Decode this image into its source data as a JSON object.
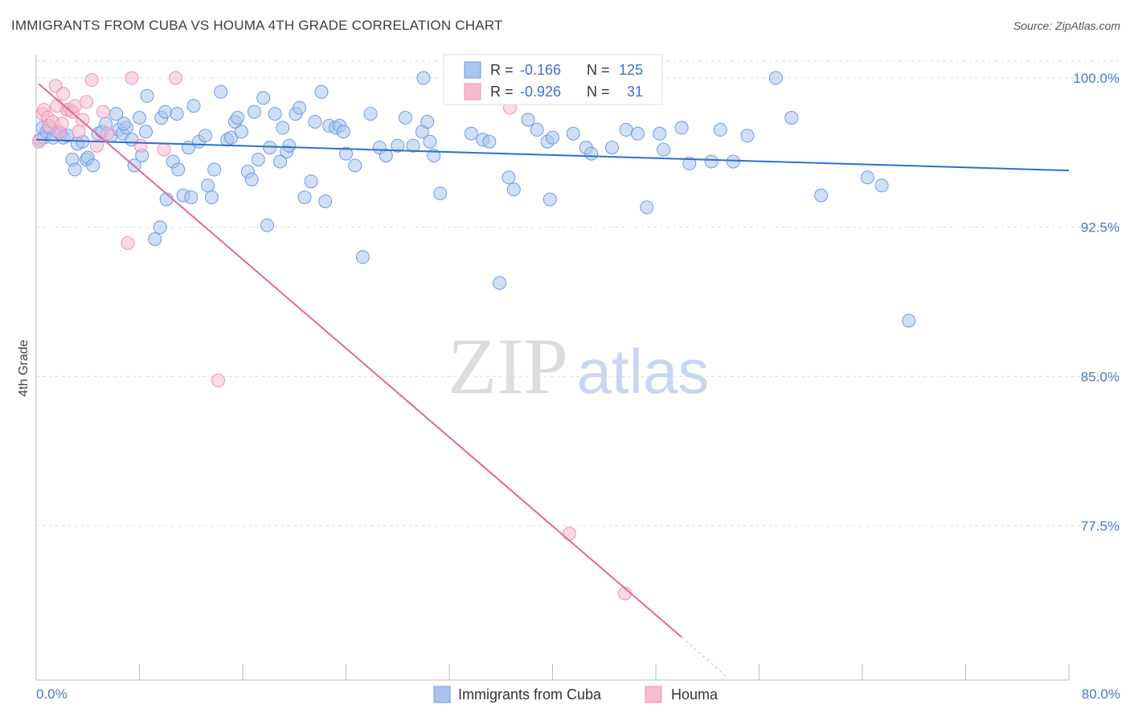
{
  "title": "IMMIGRANTS FROM CUBA VS HOUMA 4TH GRADE CORRELATION CHART",
  "source": "Source: ZipAtlas.com",
  "watermark": {
    "zip": "ZIP",
    "atlas": "atlas"
  },
  "legend_box": {
    "rows": [
      {
        "r_label": "R =",
        "r_value": "-0.166",
        "n_label": "N =",
        "n_value": "125"
      },
      {
        "r_label": "R =",
        "r_value": "-0.926",
        "n_label": "N =",
        "n_value": "31"
      }
    ]
  },
  "bottom_legend": [
    "Immigrants from Cuba",
    "Houma"
  ],
  "colors": {
    "blue_fill": "#a9c4ee",
    "blue_stroke": "#6e9be0",
    "blue_line": "#2e6fd0",
    "pink_fill": "#f6bcd0",
    "pink_stroke": "#ee93b2",
    "pink_line": "#e0699a",
    "tick_text": "#4a78c8",
    "grid": "#dddddd"
  },
  "chart_data": {
    "type": "scatter",
    "xlabel": "",
    "ylabel": "4th Grade",
    "xlim": [
      0,
      80
    ],
    "ylim": [
      71,
      101
    ],
    "x_tick_labels": [
      "0.0%",
      "80.0%"
    ],
    "y_ticks": [
      77.5,
      85.0,
      92.5,
      100.0
    ],
    "y_tick_labels": [
      "77.5%",
      "85.0%",
      "92.5%",
      "100.0%"
    ],
    "grid": "horizontal dashed",
    "series": [
      {
        "name": "Immigrants from Cuba",
        "trend": {
          "x": [
            0,
            80
          ],
          "y": [
            96.9,
            95.35
          ]
        },
        "points": [
          [
            0.3,
            96.9
          ],
          [
            0.5,
            97.5
          ],
          [
            0.6,
            97.0
          ],
          [
            0.8,
            97.3
          ],
          [
            1.0,
            97.5
          ],
          [
            1.3,
            97.0
          ],
          [
            1.6,
            97.3
          ],
          [
            1.9,
            97.2
          ],
          [
            2.1,
            97.0
          ],
          [
            2.4,
            97.1
          ],
          [
            2.8,
            95.9
          ],
          [
            3.0,
            95.4
          ],
          [
            3.2,
            96.7
          ],
          [
            3.6,
            96.8
          ],
          [
            3.9,
            95.9
          ],
          [
            4.0,
            96.0
          ],
          [
            4.4,
            95.6
          ],
          [
            4.8,
            97.2
          ],
          [
            5.1,
            97.3
          ],
          [
            5.4,
            97.7
          ],
          [
            5.8,
            97.1
          ],
          [
            6.2,
            98.2
          ],
          [
            6.4,
            97.4
          ],
          [
            6.7,
            97.2
          ],
          [
            7.0,
            97.5
          ],
          [
            7.4,
            96.9
          ],
          [
            7.6,
            95.6
          ],
          [
            8.0,
            98.0
          ],
          [
            8.2,
            96.1
          ],
          [
            8.5,
            97.3
          ],
          [
            8.6,
            99.1
          ],
          [
            9.2,
            91.9
          ],
          [
            9.6,
            92.5
          ],
          [
            9.7,
            98.0
          ],
          [
            10.0,
            98.3
          ],
          [
            10.1,
            93.9
          ],
          [
            10.6,
            95.8
          ],
          [
            10.9,
            98.2
          ],
          [
            11.0,
            95.4
          ],
          [
            11.4,
            94.1
          ],
          [
            11.8,
            96.5
          ],
          [
            12.0,
            94.0
          ],
          [
            12.2,
            98.6
          ],
          [
            12.6,
            96.8
          ],
          [
            13.1,
            97.1
          ],
          [
            13.3,
            94.6
          ],
          [
            13.6,
            94.0
          ],
          [
            13.8,
            95.4
          ],
          [
            14.3,
            99.3
          ],
          [
            14.8,
            96.9
          ],
          [
            15.1,
            97.0
          ],
          [
            15.4,
            97.8
          ],
          [
            15.6,
            98.0
          ],
          [
            15.9,
            97.3
          ],
          [
            16.4,
            95.3
          ],
          [
            16.7,
            94.9
          ],
          [
            16.9,
            98.3
          ],
          [
            17.2,
            95.9
          ],
          [
            17.6,
            99.0
          ],
          [
            17.9,
            92.6
          ],
          [
            18.1,
            96.5
          ],
          [
            18.5,
            98.2
          ],
          [
            18.9,
            95.8
          ],
          [
            19.1,
            97.5
          ],
          [
            19.4,
            96.3
          ],
          [
            19.6,
            96.6
          ],
          [
            20.1,
            98.2
          ],
          [
            20.4,
            98.5
          ],
          [
            20.8,
            94.0
          ],
          [
            21.3,
            94.8
          ],
          [
            21.6,
            97.8
          ],
          [
            22.1,
            99.3
          ],
          [
            22.4,
            93.8
          ],
          [
            22.7,
            97.6
          ],
          [
            23.2,
            97.5
          ],
          [
            23.5,
            97.6
          ],
          [
            23.8,
            97.3
          ],
          [
            24.0,
            96.2
          ],
          [
            24.7,
            95.6
          ],
          [
            25.3,
            91.0
          ],
          [
            25.9,
            98.2
          ],
          [
            26.6,
            96.5
          ],
          [
            27.1,
            96.1
          ],
          [
            28.0,
            96.6
          ],
          [
            28.6,
            98.0
          ],
          [
            29.2,
            96.6
          ],
          [
            29.9,
            97.3
          ],
          [
            30.3,
            97.8
          ],
          [
            30.5,
            96.8
          ],
          [
            30.8,
            96.1
          ],
          [
            31.3,
            94.2
          ],
          [
            33.7,
            97.2
          ],
          [
            34.6,
            96.9
          ],
          [
            35.1,
            96.8
          ],
          [
            35.9,
            89.7
          ],
          [
            36.6,
            95.0
          ],
          [
            37.0,
            94.4
          ],
          [
            38.1,
            97.9
          ],
          [
            38.8,
            97.4
          ],
          [
            39.6,
            96.8
          ],
          [
            40.0,
            97.0
          ],
          [
            39.8,
            93.9
          ],
          [
            41.6,
            97.2
          ],
          [
            42.6,
            96.5
          ],
          [
            43.0,
            96.2
          ],
          [
            44.6,
            96.5
          ],
          [
            45.7,
            97.4
          ],
          [
            46.6,
            97.2
          ],
          [
            47.3,
            93.5
          ],
          [
            48.3,
            97.2
          ],
          [
            48.6,
            96.4
          ],
          [
            50.0,
            97.5
          ],
          [
            50.6,
            95.7
          ],
          [
            52.3,
            95.8
          ],
          [
            53.0,
            97.4
          ],
          [
            54.0,
            95.8
          ],
          [
            55.1,
            97.1
          ],
          [
            57.3,
            100.0
          ],
          [
            58.5,
            98.0
          ],
          [
            60.8,
            94.1
          ],
          [
            64.4,
            95.0
          ],
          [
            65.5,
            94.6
          ],
          [
            67.6,
            87.8
          ],
          [
            30.0,
            100.0
          ],
          [
            6.8,
            97.7
          ]
        ]
      },
      {
        "name": "Houma",
        "trend": {
          "x": [
            0.2,
            50.0
          ],
          "y": [
            99.7,
            71.9
          ],
          "dashed_x": [
            50.0,
            53.5
          ],
          "dashed_y": [
            71.9,
            69.9
          ]
        },
        "points": [
          [
            0.2,
            96.8
          ],
          [
            0.5,
            98.2
          ],
          [
            0.6,
            98.4
          ],
          [
            0.9,
            98.0
          ],
          [
            1.0,
            97.6
          ],
          [
            1.3,
            97.8
          ],
          [
            1.5,
            99.6
          ],
          [
            1.6,
            98.6
          ],
          [
            1.8,
            97.3
          ],
          [
            2.0,
            97.7
          ],
          [
            2.1,
            99.2
          ],
          [
            2.4,
            98.4
          ],
          [
            2.6,
            98.4
          ],
          [
            2.8,
            98.3
          ],
          [
            3.0,
            98.6
          ],
          [
            3.3,
            97.3
          ],
          [
            3.6,
            97.9
          ],
          [
            3.9,
            98.8
          ],
          [
            4.3,
            99.9
          ],
          [
            4.7,
            96.6
          ],
          [
            5.2,
            98.3
          ],
          [
            5.5,
            97.2
          ],
          [
            7.1,
            91.7
          ],
          [
            7.4,
            100.0
          ],
          [
            8.1,
            96.6
          ],
          [
            9.9,
            96.4
          ],
          [
            10.8,
            100.0
          ],
          [
            14.1,
            84.8
          ],
          [
            36.7,
            98.5
          ],
          [
            41.3,
            77.1
          ],
          [
            45.6,
            74.1
          ]
        ]
      }
    ]
  }
}
